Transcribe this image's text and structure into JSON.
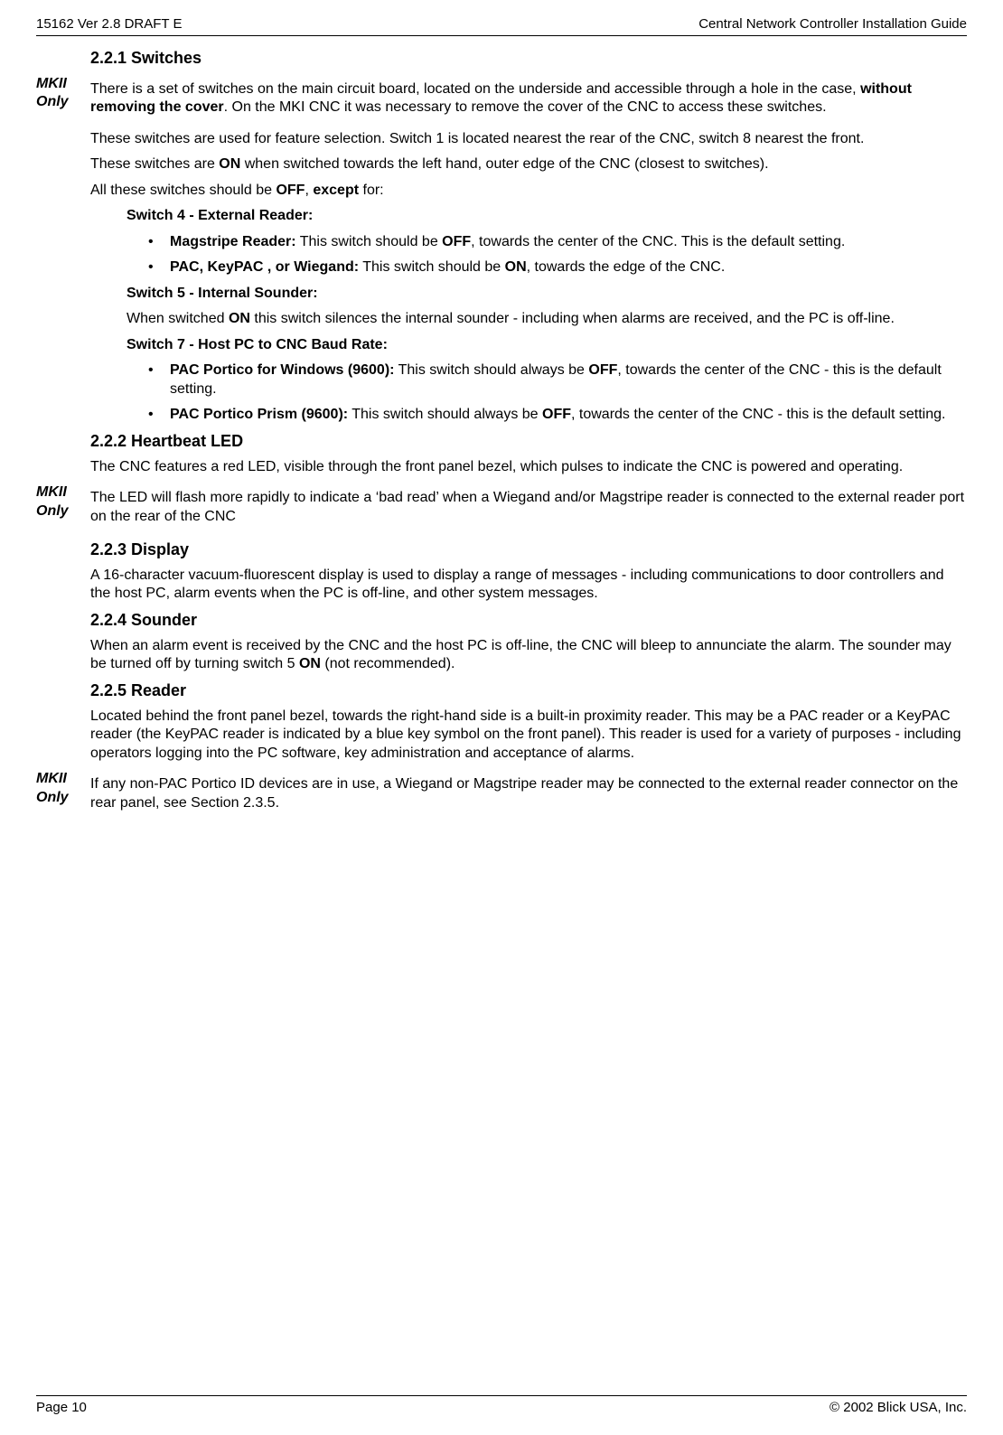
{
  "header": {
    "left": "15162 Ver 2.8 DRAFT E",
    "right": "Central Network Controller Installation Guide"
  },
  "footer": {
    "left": "Page 10",
    "right": "© 2002 Blick USA, Inc."
  },
  "sidenotes": {
    "mk2": "MKII Only"
  },
  "s221": {
    "title": "2.2.1 Switches",
    "p1a": "There is a set of switches on the main circuit board, located on the underside and accessible through a hole in the case, ",
    "p1b": "without removing the cover",
    "p1c": ". On the MKI CNC it was necessary to remove the cover of the CNC to access these switches.",
    "p2": "These switches are used for feature selection. Switch 1 is located nearest the rear of the CNC, switch 8 nearest the front.",
    "p3a": "These switches are ",
    "p3b": "ON",
    "p3c": " when switched towards the left hand, outer edge of the CNC (closest to switches).",
    "p4a": "All these switches should be ",
    "p4b": "OFF",
    "p4c": ", ",
    "p4d": "except",
    "p4e": " for:",
    "sw4h": "Switch 4 - External Reader:",
    "sw4_li1a": "Magstripe Reader:",
    "sw4_li1b": " This switch should be ",
    "sw4_li1c": "OFF",
    "sw4_li1d": ", towards the center of the CNC. This is the default setting.",
    "sw4_li2a": "PAC, KeyPAC , or Wiegand:",
    "sw4_li2b": " This switch should be ",
    "sw4_li2c": "ON",
    "sw4_li2d": ", towards the edge of the CNC.",
    "sw5h": "Switch 5 - Internal Sounder:",
    "sw5_p1a": "When switched ",
    "sw5_p1b": "ON",
    "sw5_p1c": " this switch silences the internal sounder - including when alarms are received, and the PC is off-line.",
    "sw7h": "Switch 7 - Host PC to CNC Baud Rate:",
    "sw7_li1a": "PAC Portico for Windows (9600):",
    "sw7_li1b": " This switch should always be ",
    "sw7_li1c": "OFF",
    "sw7_li1d": ", towards the center of the CNC - this is the default setting.",
    "sw7_li2a": "PAC Portico Prism (9600):",
    "sw7_li2b": " This switch should always be ",
    "sw7_li2c": "OFF",
    "sw7_li2d": ", towards the center of the CNC - this is the default setting."
  },
  "s222": {
    "title": "2.2.2 Heartbeat LED",
    "p1": "The CNC features a red LED, visible through the front panel bezel, which pulses to indicate the CNC is powered and operating.",
    "p2": "The LED will flash more rapidly to indicate a ‘bad read’ when a Wiegand and/or Magstripe reader is connected to the external reader port on the rear of the CNC"
  },
  "s223": {
    "title": "2.2.3 Display",
    "p1": "A 16-character vacuum-fluorescent display is used to display a range of messages - including communications to door controllers and the host PC, alarm events when the PC is off-line, and other system messages."
  },
  "s224": {
    "title": "2.2.4 Sounder",
    "p1a": "When an alarm event is received by the CNC and the host PC is off-line, the CNC will bleep to annunciate the alarm. The sounder may be turned off by turning switch 5 ",
    "p1b": "ON",
    "p1c": " (not recommended)."
  },
  "s225": {
    "title": "2.2.5 Reader",
    "p1": "Located behind the front panel bezel, towards the right-hand side is a built-in proximity reader. This may be a PAC reader or a KeyPAC reader (the KeyPAC reader is indicated by a blue key symbol on the front panel). This reader is used for a variety of purposes - including operators logging into the PC software, key administration and acceptance of alarms.",
    "p2": "If any non-PAC Portico ID devices are in use, a Wiegand or Magstripe reader may be connected to the external reader connector on the rear panel, see Section 2.3.5."
  }
}
